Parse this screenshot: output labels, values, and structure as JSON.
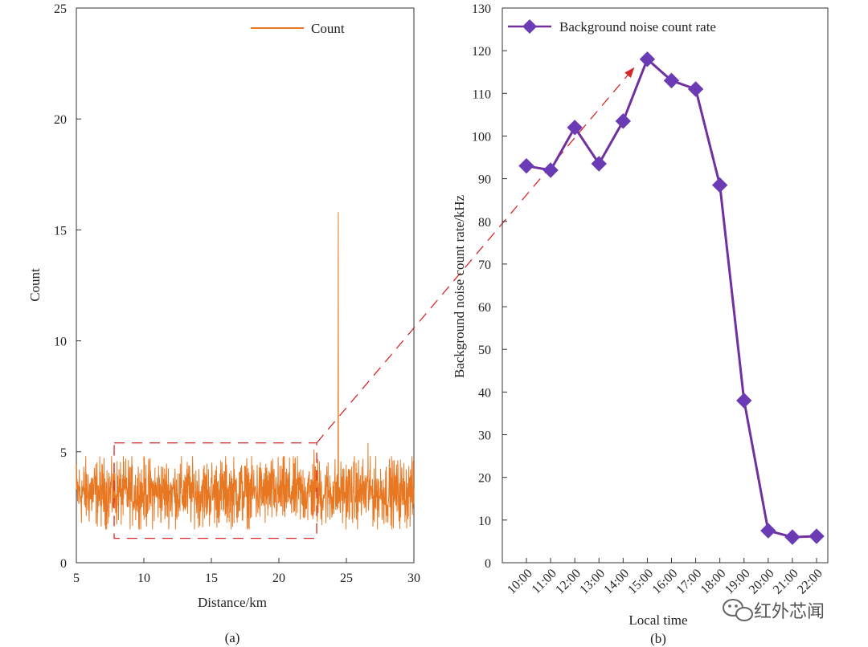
{
  "chart_data": [
    {
      "id": "a",
      "type": "line",
      "caption": "(a)",
      "xlabel": "Distance/km",
      "ylabel": "Count",
      "xlim": [
        5,
        30
      ],
      "ylim": [
        0,
        25
      ],
      "xticks": [
        5,
        10,
        15,
        20,
        25,
        30
      ],
      "yticks": [
        0,
        5,
        10,
        15,
        20,
        25
      ],
      "legend": {
        "label": "Count",
        "position": "top-right"
      },
      "series": [
        {
          "name": "Count",
          "color": "#E87722",
          "noise_band": {
            "x_range": [
              5,
              30
            ],
            "mean": 3.1,
            "min": 1.5,
            "max": 4.8
          },
          "peaks": [
            {
              "x": 24.4,
              "y": 15.8
            },
            {
              "x": 26.6,
              "y": 5.4
            },
            {
              "x": 22.6,
              "y": 5.1
            }
          ]
        }
      ],
      "highlight_box": {
        "x_range": [
          7.8,
          22.8
        ],
        "y_range": [
          1.1,
          5.4
        ],
        "color": "#D62828"
      }
    },
    {
      "id": "b",
      "type": "line",
      "caption": "(b)",
      "xlabel": "Local time",
      "ylabel": "Background noise count rate/kHz",
      "ylim": [
        0,
        130
      ],
      "yticks": [
        0,
        10,
        20,
        30,
        40,
        50,
        60,
        70,
        80,
        90,
        100,
        110,
        120,
        130
      ],
      "categories": [
        "10:00",
        "11:00",
        "12:00",
        "13:00",
        "14:00",
        "15:00",
        "16:00",
        "17:00",
        "18:00",
        "19:00",
        "20:00",
        "21:00",
        "22:00"
      ],
      "series": [
        {
          "name": "Background noise count rate",
          "color": "#7030A0",
          "marker_color": "#6A3BB5",
          "values": [
            93,
            92,
            102,
            93.5,
            103.5,
            118,
            113,
            111,
            88.5,
            38,
            7.5,
            6,
            6.2
          ]
        }
      ],
      "legend": {
        "label": "Background noise count rate",
        "position": "top-left"
      }
    }
  ],
  "watermark": "红外芯闻"
}
